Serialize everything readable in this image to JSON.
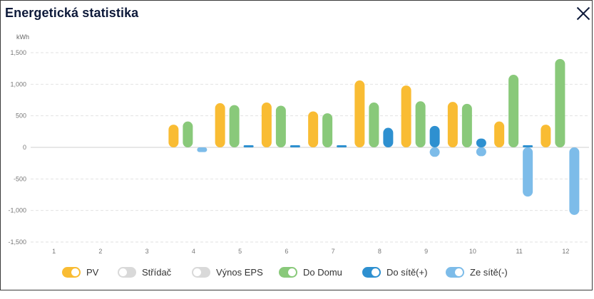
{
  "dialog": {
    "title": "Energetická statistika"
  },
  "chart_data": {
    "type": "bar",
    "unit": "kWh",
    "categories": [
      "1",
      "2",
      "3",
      "4",
      "5",
      "6",
      "7",
      "8",
      "9",
      "10",
      "11",
      "12"
    ],
    "ylim": [
      -1500,
      1500
    ],
    "yticks": [
      1500,
      1000,
      500,
      0,
      -500,
      -1000,
      -1500
    ],
    "ytick_labels": [
      "1,500",
      "1,000",
      "500",
      "0",
      "-500",
      "-1,000",
      "-1,500"
    ],
    "grid": true,
    "series": [
      {
        "name": "PV",
        "enabled": true,
        "color": "#f9bc33",
        "values": [
          0,
          0,
          0,
          360,
          700,
          710,
          570,
          1060,
          980,
          720,
          410,
          360
        ]
      },
      {
        "name": "Střídač",
        "enabled": false,
        "color": "#d9d9d9",
        "values": [
          0,
          0,
          0,
          0,
          0,
          0,
          0,
          0,
          0,
          0,
          0,
          0
        ]
      },
      {
        "name": "Výnos EPS",
        "enabled": false,
        "color": "#d9d9d9",
        "values": [
          0,
          0,
          0,
          0,
          0,
          0,
          0,
          0,
          0,
          0,
          0,
          0
        ]
      },
      {
        "name": "Do Domu",
        "enabled": true,
        "color": "#89c97a",
        "values": [
          0,
          0,
          0,
          410,
          670,
          660,
          540,
          710,
          730,
          690,
          1150,
          1400
        ]
      },
      {
        "name": "Do sítě(+)",
        "enabled": true,
        "color": "#2e90d0",
        "values": [
          0,
          0,
          0,
          0,
          15,
          15,
          15,
          310,
          340,
          140,
          15,
          0
        ]
      },
      {
        "name": "Ze sítě(-)",
        "enabled": true,
        "color": "#7dbce9",
        "values": [
          0,
          0,
          0,
          -75,
          0,
          0,
          0,
          0,
          -150,
          -140,
          -780,
          -1070
        ]
      }
    ]
  }
}
